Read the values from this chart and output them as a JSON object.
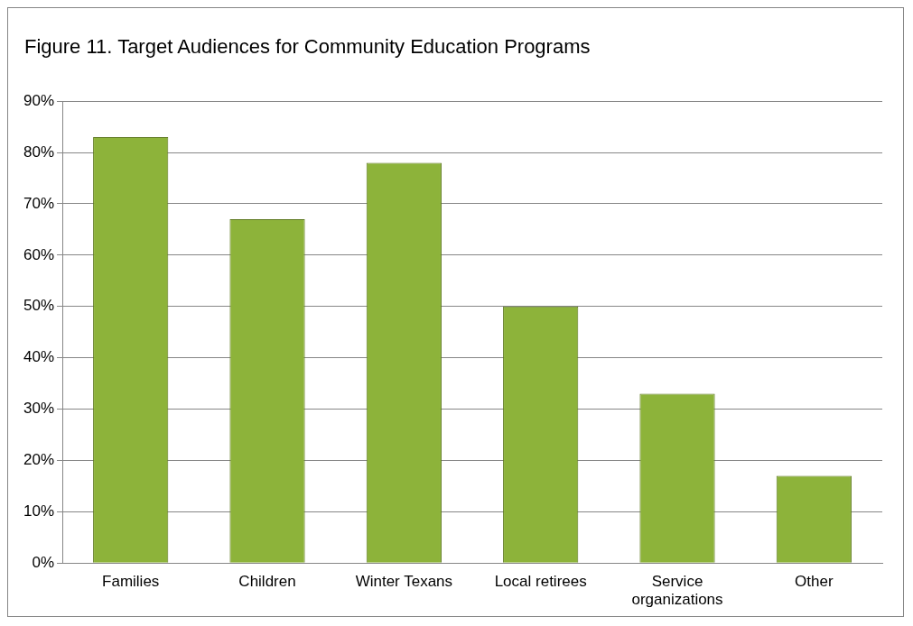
{
  "chart_data": {
    "type": "bar",
    "title": "Figure 11. Target Audiences for Community Education Programs",
    "categories": [
      "Families",
      "Children",
      "Winter Texans",
      "Local retirees",
      "Service organizations",
      "Other"
    ],
    "values": [
      83,
      67,
      78,
      50,
      33,
      17
    ],
    "color": "#8db33a",
    "ylim": [
      0,
      90
    ],
    "yticks": [
      {
        "value": 0,
        "label": "0%"
      },
      {
        "value": 10,
        "label": "10%"
      },
      {
        "value": 20,
        "label": "20%"
      },
      {
        "value": 30,
        "label": "30%"
      },
      {
        "value": 40,
        "label": "40%"
      },
      {
        "value": 50,
        "label": "50%"
      },
      {
        "value": 60,
        "label": "60%"
      },
      {
        "value": 70,
        "label": "70%"
      },
      {
        "value": 80,
        "label": "80%"
      },
      {
        "value": 90,
        "label": "90%"
      }
    ],
    "grid": "y"
  }
}
